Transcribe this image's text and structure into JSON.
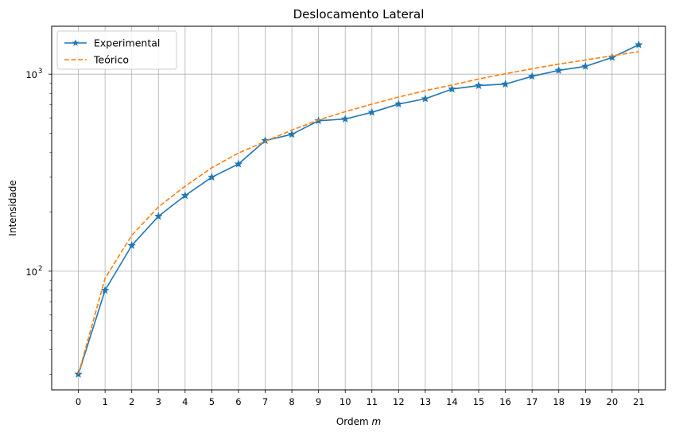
{
  "chart_data": {
    "type": "line",
    "title": "Deslocamento Lateral",
    "xlabel_text": "Ordem ",
    "xlabel_var": "m",
    "ylabel": "Intensidade",
    "y_scale": "log",
    "xlim": [
      -1,
      22
    ],
    "ylim": [
      25,
      1750
    ],
    "grid": true,
    "legend_position": "upper-left",
    "x_ticks": [
      0,
      1,
      2,
      3,
      4,
      5,
      6,
      7,
      8,
      9,
      10,
      11,
      12,
      13,
      14,
      15,
      16,
      17,
      18,
      19,
      20,
      21
    ],
    "y_ticks": [
      {
        "value": 100,
        "base": "10",
        "exp": "2"
      },
      {
        "value": 1000,
        "base": "10",
        "exp": "3"
      }
    ],
    "x": [
      0,
      1,
      2,
      3,
      4,
      5,
      6,
      7,
      8,
      9,
      10,
      11,
      12,
      13,
      14,
      15,
      16,
      17,
      18,
      19,
      20,
      21
    ],
    "series": [
      {
        "name": "Experimental",
        "color": "#1f77b4",
        "style": "solid",
        "marker": "star",
        "values": [
          30,
          80,
          135,
          190,
          242,
          300,
          350,
          460,
          495,
          580,
          592,
          640,
          705,
          750,
          840,
          875,
          890,
          975,
          1045,
          1095,
          1215,
          1410
        ]
      },
      {
        "name": "Teórico",
        "color": "#ff7f0e",
        "style": "dashed",
        "marker": "none",
        "values": [
          30,
          92,
          152,
          212,
          270,
          335,
          398,
          455,
          520,
          585,
          645,
          705,
          765,
          825,
          880,
          945,
          1005,
          1065,
          1125,
          1180,
          1240,
          1300
        ]
      }
    ]
  }
}
